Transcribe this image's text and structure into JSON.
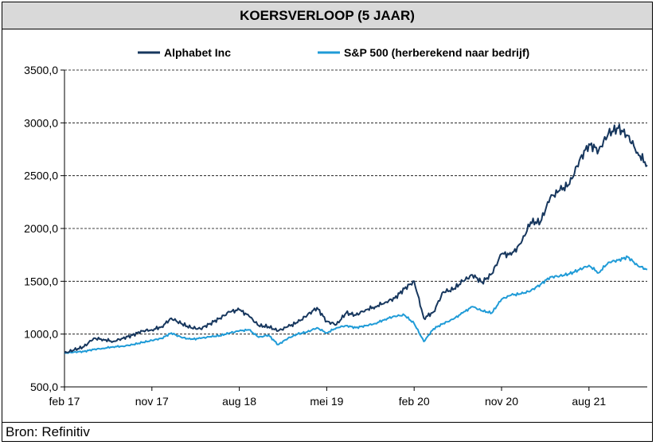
{
  "header": {
    "title": "KOERSVERLOOP (5 JAAR)"
  },
  "footer": {
    "source": "Bron: Refinitiv"
  },
  "colors": {
    "alphabet": "#17375e",
    "sp500": "#1f9bd7",
    "title_bg": "#d9d9d9"
  },
  "chart_data": {
    "type": "line",
    "title": "KOERSVERLOOP (5 JAAR)",
    "xlabel": "",
    "ylabel": "",
    "ylim": [
      500,
      3500
    ],
    "grid": "horizontal-dashed",
    "legend_position": "top",
    "y_ticks": [
      500,
      1000,
      1500,
      2000,
      2500,
      3000,
      3500
    ],
    "y_tick_labels": [
      "500,0",
      "1000,0",
      "1500,0",
      "2000,0",
      "2500,0",
      "3000,0",
      "3500,0"
    ],
    "x_tick_labels": [
      "feb 17",
      "nov 17",
      "aug 18",
      "mei 19",
      "feb 20",
      "nov 20",
      "aug 21"
    ],
    "x_range": [
      "2017-02",
      "2022-02"
    ],
    "x": [
      "2017-02",
      "2017-03",
      "2017-04",
      "2017-05",
      "2017-06",
      "2017-07",
      "2017-08",
      "2017-09",
      "2017-10",
      "2017-11",
      "2017-12",
      "2018-01",
      "2018-02",
      "2018-03",
      "2018-04",
      "2018-05",
      "2018-06",
      "2018-07",
      "2018-08",
      "2018-09",
      "2018-10",
      "2018-11",
      "2018-12",
      "2019-01",
      "2019-02",
      "2019-03",
      "2019-04",
      "2019-05",
      "2019-06",
      "2019-07",
      "2019-08",
      "2019-09",
      "2019-10",
      "2019-11",
      "2019-12",
      "2020-01",
      "2020-02",
      "2020-03",
      "2020-04",
      "2020-05",
      "2020-06",
      "2020-07",
      "2020-08",
      "2020-09",
      "2020-10",
      "2020-11",
      "2020-12",
      "2021-01",
      "2021-02",
      "2021-03",
      "2021-04",
      "2021-05",
      "2021-06",
      "2021-07",
      "2021-08",
      "2021-09",
      "2021-10",
      "2021-11",
      "2021-12",
      "2022-01",
      "2022-02"
    ],
    "series": [
      {
        "name": "Alphabet Inc",
        "values": [
          820,
          850,
          880,
          960,
          950,
          930,
          960,
          990,
          1030,
          1040,
          1070,
          1150,
          1100,
          1060,
          1050,
          1100,
          1150,
          1210,
          1230,
          1170,
          1080,
          1070,
          1030,
          1070,
          1110,
          1180,
          1250,
          1120,
          1090,
          1200,
          1180,
          1230,
          1260,
          1300,
          1340,
          1430,
          1500,
          1150,
          1210,
          1400,
          1420,
          1500,
          1560,
          1490,
          1570,
          1760,
          1750,
          1860,
          2060,
          2060,
          2290,
          2360,
          2420,
          2640,
          2800,
          2740,
          2900,
          2950,
          2880,
          2720,
          2600
        ]
      },
      {
        "name": "S&P 500 (herberekend naar bedrijf)",
        "values": [
          820,
          830,
          835,
          855,
          865,
          880,
          885,
          900,
          920,
          940,
          960,
          1010,
          970,
          950,
          960,
          975,
          985,
          1010,
          1030,
          1040,
          970,
          990,
          900,
          960,
          1000,
          1020,
          1060,
          1010,
          1060,
          1080,
          1060,
          1080,
          1100,
          1140,
          1170,
          1180,
          1100,
          930,
          1050,
          1100,
          1140,
          1200,
          1260,
          1220,
          1200,
          1330,
          1370,
          1380,
          1410,
          1470,
          1540,
          1550,
          1570,
          1610,
          1650,
          1580,
          1680,
          1700,
          1730,
          1650,
          1610
        ]
      }
    ]
  }
}
